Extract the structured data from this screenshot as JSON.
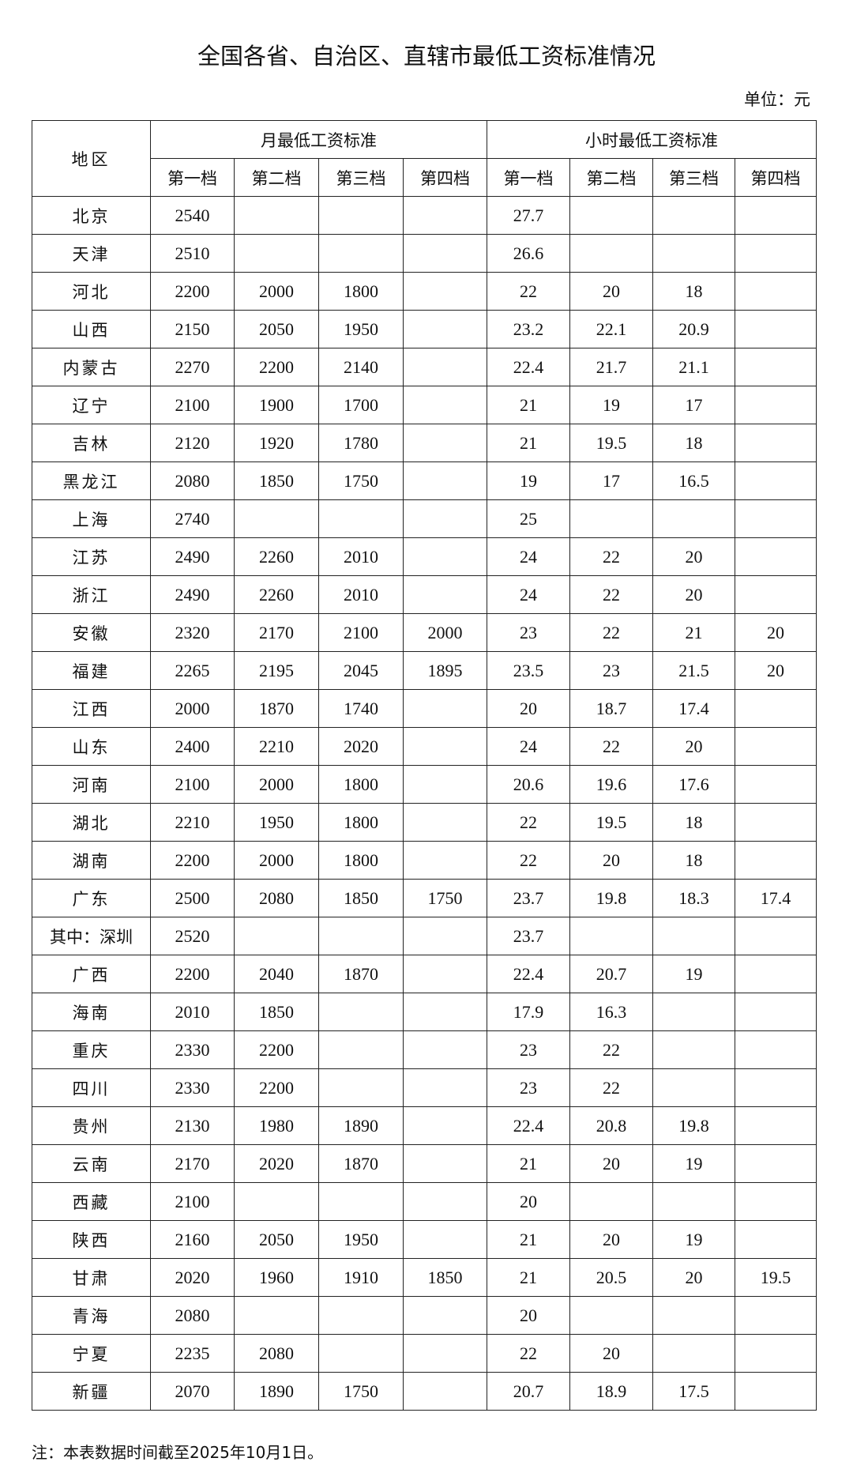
{
  "title": "全国各省、自治区、直辖市最低工资标准情况",
  "unit": "单位：元",
  "headers": {
    "region": "地区",
    "monthly": "月最低工资标准",
    "hourly": "小时最低工资标准",
    "tiers": [
      "第一档",
      "第二档",
      "第三档",
      "第四档"
    ]
  },
  "rows": [
    [
      "北京",
      "2540",
      "",
      "",
      "",
      "27.7",
      "",
      "",
      ""
    ],
    [
      "天津",
      "2510",
      "",
      "",
      "",
      "26.6",
      "",
      "",
      ""
    ],
    [
      "河北",
      "2200",
      "2000",
      "1800",
      "",
      "22",
      "20",
      "18",
      ""
    ],
    [
      "山西",
      "2150",
      "2050",
      "1950",
      "",
      "23.2",
      "22.1",
      "20.9",
      ""
    ],
    [
      "内蒙古",
      "2270",
      "2200",
      "2140",
      "",
      "22.4",
      "21.7",
      "21.1",
      ""
    ],
    [
      "辽宁",
      "2100",
      "1900",
      "1700",
      "",
      "21",
      "19",
      "17",
      ""
    ],
    [
      "吉林",
      "2120",
      "1920",
      "1780",
      "",
      "21",
      "19.5",
      "18",
      ""
    ],
    [
      "黑龙江",
      "2080",
      "1850",
      "1750",
      "",
      "19",
      "17",
      "16.5",
      ""
    ],
    [
      "上海",
      "2740",
      "",
      "",
      "",
      "25",
      "",
      "",
      ""
    ],
    [
      "江苏",
      "2490",
      "2260",
      "2010",
      "",
      "24",
      "22",
      "20",
      ""
    ],
    [
      "浙江",
      "2490",
      "2260",
      "2010",
      "",
      "24",
      "22",
      "20",
      ""
    ],
    [
      "安徽",
      "2320",
      "2170",
      "2100",
      "2000",
      "23",
      "22",
      "21",
      "20"
    ],
    [
      "福建",
      "2265",
      "2195",
      "2045",
      "1895",
      "23.5",
      "23",
      "21.5",
      "20"
    ],
    [
      "江西",
      "2000",
      "1870",
      "1740",
      "",
      "20",
      "18.7",
      "17.4",
      ""
    ],
    [
      "山东",
      "2400",
      "2210",
      "2020",
      "",
      "24",
      "22",
      "20",
      ""
    ],
    [
      "河南",
      "2100",
      "2000",
      "1800",
      "",
      "20.6",
      "19.6",
      "17.6",
      ""
    ],
    [
      "湖北",
      "2210",
      "1950",
      "1800",
      "",
      "22",
      "19.5",
      "18",
      ""
    ],
    [
      "湖南",
      "2200",
      "2000",
      "1800",
      "",
      "22",
      "20",
      "18",
      ""
    ],
    [
      "广东",
      "2500",
      "2080",
      "1850",
      "1750",
      "23.7",
      "19.8",
      "18.3",
      "17.4"
    ],
    [
      "其中：深圳",
      "2520",
      "",
      "",
      "",
      "23.7",
      "",
      "",
      ""
    ],
    [
      "广西",
      "2200",
      "2040",
      "1870",
      "",
      "22.4",
      "20.7",
      "19",
      ""
    ],
    [
      "海南",
      "2010",
      "1850",
      "",
      "",
      "17.9",
      "16.3",
      "",
      ""
    ],
    [
      "重庆",
      "2330",
      "2200",
      "",
      "",
      "23",
      "22",
      "",
      ""
    ],
    [
      "四川",
      "2330",
      "2200",
      "",
      "",
      "23",
      "22",
      "",
      ""
    ],
    [
      "贵州",
      "2130",
      "1980",
      "1890",
      "",
      "22.4",
      "20.8",
      "19.8",
      ""
    ],
    [
      "云南",
      "2170",
      "2020",
      "1870",
      "",
      "21",
      "20",
      "19",
      ""
    ],
    [
      "西藏",
      "2100",
      "",
      "",
      "",
      "20",
      "",
      "",
      ""
    ],
    [
      "陕西",
      "2160",
      "2050",
      "1950",
      "",
      "21",
      "20",
      "19",
      ""
    ],
    [
      "甘肃",
      "2020",
      "1960",
      "1910",
      "1850",
      "21",
      "20.5",
      "20",
      "19.5"
    ],
    [
      "青海",
      "2080",
      "",
      "",
      "",
      "20",
      "",
      "",
      ""
    ],
    [
      "宁夏",
      "2235",
      "2080",
      "",
      "",
      "22",
      "20",
      "",
      ""
    ],
    [
      "新疆",
      "2070",
      "1890",
      "1750",
      "",
      "20.7",
      "18.9",
      "17.5",
      ""
    ]
  ],
  "note": "注：本表数据时间截至2025年10月1日。"
}
